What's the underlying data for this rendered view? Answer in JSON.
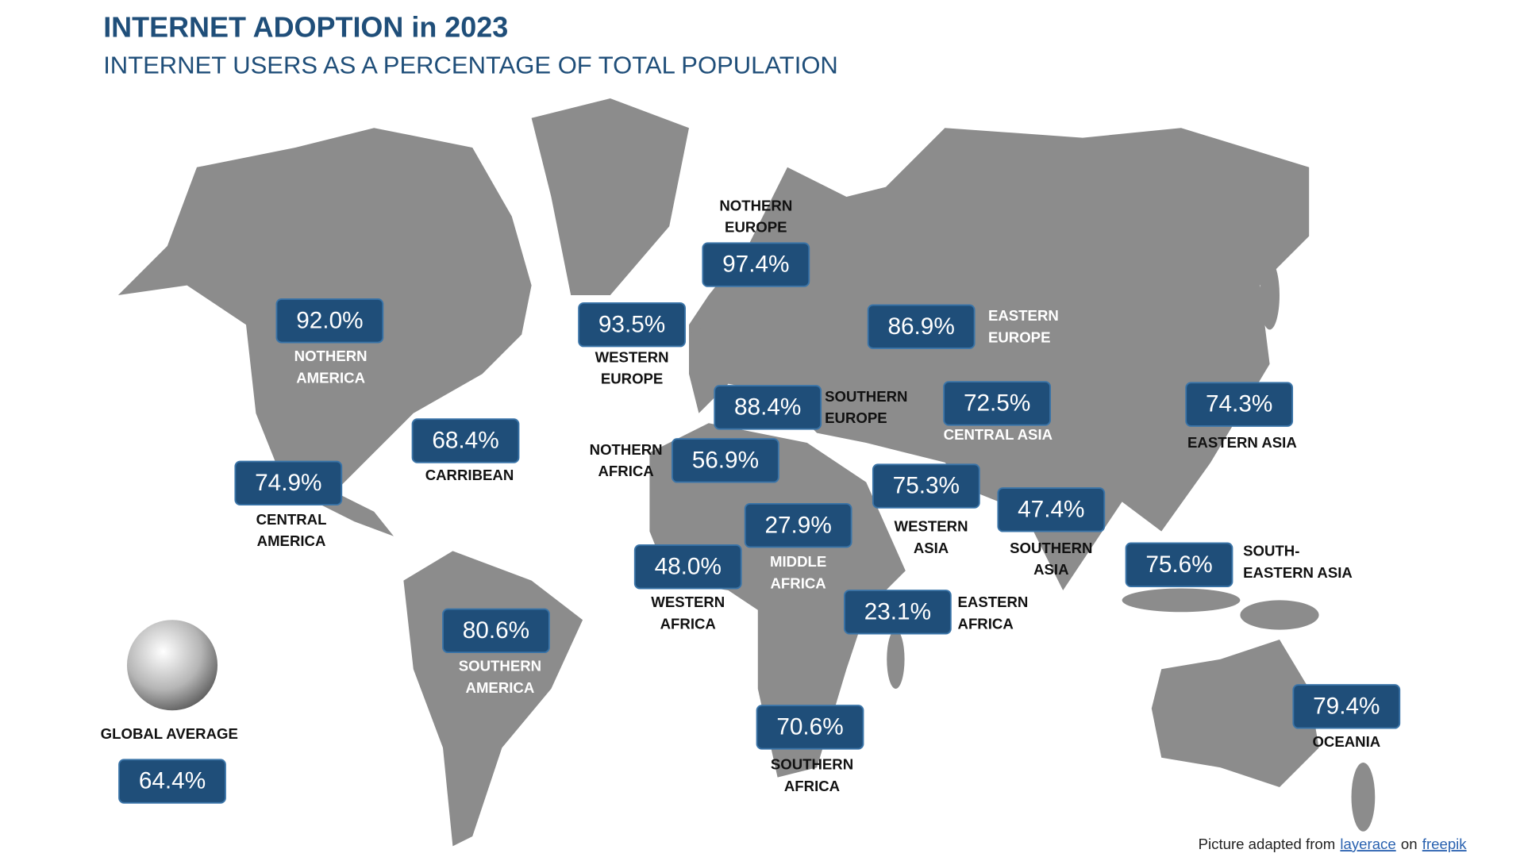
{
  "header": {
    "title": "INTERNET ADOPTION in 2023",
    "subtitle": "INTERNET USERS AS A PERCENTAGE OF TOTAL POPULATION"
  },
  "regions": [
    {
      "lines": [
        "NOTHERN",
        "AMERICA"
      ],
      "value": "92.0%"
    },
    {
      "lines": [
        "WESTERN",
        "EUROPE"
      ],
      "value": "93.5%"
    },
    {
      "lines": [
        "NOTHERN",
        "EUROPE"
      ],
      "value": "97.4%"
    },
    {
      "lines": [
        "EASTERN",
        "EUROPE"
      ],
      "value": "86.9%"
    },
    {
      "lines": [
        "SOUTHERN",
        "EUROPE"
      ],
      "value": "88.4%"
    },
    {
      "lines": [
        "CENTRAL ASIA"
      ],
      "value": "72.5%"
    },
    {
      "lines": [
        "EASTERN ASIA"
      ],
      "value": "74.3%"
    },
    {
      "lines": [
        "CARRIBEAN"
      ],
      "value": "68.4%"
    },
    {
      "lines": [
        "CENTRAL",
        "AMERICA"
      ],
      "value": "74.9%"
    },
    {
      "lines": [
        "NOTHERN",
        "AFRICA"
      ],
      "value": "56.9%"
    },
    {
      "lines": [
        "MIDDLE",
        "AFRICA"
      ],
      "value": "27.9%"
    },
    {
      "lines": [
        "WESTERN",
        "AFRICA"
      ],
      "value": "48.0%"
    },
    {
      "lines": [
        "EASTERN",
        "AFRICA"
      ],
      "value": "23.1%"
    },
    {
      "lines": [
        "WESTERN",
        "ASIA"
      ],
      "value": "75.3%"
    },
    {
      "lines": [
        "SOUTHERN",
        "ASIA"
      ],
      "value": "47.4%"
    },
    {
      "lines": [
        "SOUTH-",
        "EASTERN ASIA"
      ],
      "value": "75.6%"
    },
    {
      "lines": [
        "SOUTHERN",
        "AMERICA"
      ],
      "value": "80.6%"
    },
    {
      "lines": [
        "SOUTHERN",
        "AFRICA"
      ],
      "value": "70.6%"
    },
    {
      "lines": [
        "OCEANIA"
      ],
      "value": "79.4%"
    }
  ],
  "global_average": {
    "label": "GLOBAL AVERAGE",
    "value": "64.4%"
  },
  "credit": {
    "prefix": "Picture adapted from",
    "link1": "layerace",
    "middle": "on",
    "link2": "freepik"
  }
}
